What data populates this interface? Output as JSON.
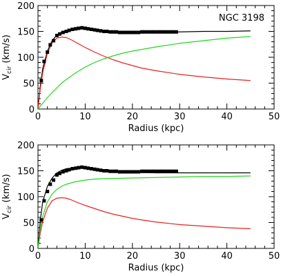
{
  "chart_data": [
    {
      "type": "line",
      "annotation": "NGC 3198",
      "xlabel": "Radius (kpc)",
      "ylabel": "V_cir (km/s)",
      "ylabel_main": "V",
      "ylabel_sub": "cir",
      "ylabel_units": " (km/s)",
      "xlim": [
        0,
        50
      ],
      "ylim": [
        0,
        200
      ],
      "xticks": [
        0,
        10,
        20,
        30,
        40,
        50
      ],
      "yticks": [
        0,
        50,
        100,
        150,
        200
      ],
      "xtick_labels": [
        "0",
        "10",
        "20",
        "30",
        "40",
        "50"
      ],
      "ytick_labels": [
        "0",
        "50",
        "100",
        "150",
        "200"
      ],
      "grid": false,
      "legend": false,
      "series": [
        {
          "kind": "scatter",
          "color": "#000000",
          "x": [
            0.7,
            1.3,
            2.0,
            2.6,
            3.3,
            4.0,
            4.6,
            5.3,
            6.0,
            6.6,
            7.3,
            8.0,
            8.6,
            9.3,
            10.0,
            10.6,
            11.3,
            12.0,
            12.6,
            13.3,
            14.0,
            14.6,
            15.3,
            16.0,
            16.6,
            17.3,
            18.0,
            18.6,
            19.3,
            20.0,
            20.6,
            21.3,
            22.0,
            22.6,
            23.3,
            24.0,
            24.6,
            25.3,
            26.0,
            26.6,
            27.3,
            28.0,
            28.6,
            29.3
          ],
          "y": [
            55,
            92,
            110,
            124,
            132,
            142,
            145,
            148,
            150,
            152,
            154,
            155,
            156,
            157,
            156,
            155,
            154,
            153,
            152,
            151,
            150,
            150,
            149,
            149,
            149,
            148,
            148,
            148,
            148,
            148,
            148,
            148,
            149,
            149,
            149,
            149,
            149,
            149,
            149,
            149,
            149,
            149,
            149,
            149
          ]
        },
        {
          "kind": "line",
          "color": "#000000",
          "x": [
            0,
            0.5,
            1,
            2,
            3,
            4,
            5,
            6,
            7,
            8,
            9,
            10,
            12,
            14,
            16,
            18,
            20,
            22,
            25,
            30,
            35,
            40,
            45
          ],
          "y": [
            0,
            45,
            78,
            112,
            132,
            143,
            149,
            152,
            154,
            155,
            155,
            154,
            152,
            150,
            149,
            148,
            148,
            148,
            149,
            149,
            150,
            150,
            151
          ]
        },
        {
          "kind": "line",
          "color": "#e8201f",
          "x": [
            0,
            0.5,
            1,
            2,
            3,
            4,
            5,
            6,
            7,
            8,
            10,
            12,
            14,
            16,
            18,
            20,
            22,
            25,
            30,
            35,
            40,
            45
          ],
          "y": [
            0,
            40,
            70,
            108,
            128,
            137,
            139,
            138,
            134,
            129,
            119,
            110,
            102,
            95,
            89,
            84,
            79,
            74,
            67,
            62,
            58,
            55
          ]
        },
        {
          "kind": "line",
          "color": "#22d61f",
          "x": [
            0,
            1,
            2,
            3,
            4,
            5,
            6,
            8,
            10,
            12,
            14,
            16,
            18,
            20,
            25,
            30,
            35,
            40,
            45
          ],
          "y": [
            0,
            11,
            22,
            32,
            41,
            50,
            57,
            70,
            81,
            90,
            97,
            103,
            108,
            112,
            120,
            127,
            132,
            137,
            140
          ]
        }
      ]
    },
    {
      "type": "line",
      "xlabel": "Radius (kpc)",
      "ylabel": "V_cir (km/s)",
      "ylabel_main": "V",
      "ylabel_sub": "cir",
      "ylabel_units": " (km/s)",
      "xlim": [
        0,
        50
      ],
      "ylim": [
        0,
        200
      ],
      "xticks": [
        0,
        10,
        20,
        30,
        40,
        50
      ],
      "yticks": [
        0,
        50,
        100,
        150,
        200
      ],
      "xtick_labels": [
        "0",
        "10",
        "20",
        "30",
        "40",
        "50"
      ],
      "ytick_labels": [
        "0",
        "50",
        "100",
        "150",
        "200"
      ],
      "grid": false,
      "legend": false,
      "series": [
        {
          "kind": "scatter",
          "color": "#000000",
          "x": [
            0.7,
            1.3,
            2.0,
            2.6,
            3.3,
            4.0,
            4.6,
            5.3,
            6.0,
            6.6,
            7.3,
            8.0,
            8.6,
            9.3,
            10.0,
            10.6,
            11.3,
            12.0,
            12.6,
            13.3,
            14.0,
            14.6,
            15.3,
            16.0,
            16.6,
            17.3,
            18.0,
            18.6,
            19.3,
            20.0,
            20.6,
            21.3,
            22.0,
            22.6,
            23.3,
            24.0,
            24.6,
            25.3,
            26.0,
            26.6,
            27.3,
            28.0,
            28.6,
            29.3
          ],
          "y": [
            55,
            92,
            110,
            124,
            132,
            142,
            145,
            148,
            150,
            152,
            154,
            155,
            156,
            157,
            156,
            155,
            154,
            153,
            152,
            151,
            150,
            150,
            149,
            149,
            149,
            148,
            148,
            148,
            148,
            148,
            148,
            148,
            149,
            149,
            149,
            149,
            149,
            149,
            149,
            149,
            149,
            149,
            149,
            149
          ]
        },
        {
          "kind": "line",
          "color": "#000000",
          "x": [
            0,
            0.5,
            1,
            2,
            3,
            4,
            5,
            6,
            7,
            8,
            9,
            10,
            12,
            14,
            16,
            18,
            20,
            25,
            30,
            35,
            40,
            45
          ],
          "y": [
            0,
            55,
            90,
            120,
            136,
            146,
            151,
            154,
            155,
            156,
            155,
            154,
            152,
            150,
            149,
            148,
            147,
            146,
            146,
            146,
            146,
            146
          ]
        },
        {
          "kind": "line",
          "color": "#e8201f",
          "x": [
            0,
            0.5,
            1,
            2,
            3,
            4,
            5,
            6,
            7,
            8,
            10,
            12,
            14,
            16,
            18,
            20,
            22,
            25,
            30,
            35,
            40,
            45
          ],
          "y": [
            0,
            30,
            52,
            78,
            92,
            97,
            98,
            97,
            94,
            90,
            83,
            77,
            71,
            66,
            62,
            58,
            55,
            51,
            46,
            43,
            40,
            38
          ]
        },
        {
          "kind": "line",
          "color": "#22d61f",
          "x": [
            0,
            0.5,
            1,
            2,
            3,
            4,
            5,
            6,
            8,
            10,
            12,
            15,
            20,
            25,
            30,
            35,
            40,
            45
          ],
          "y": [
            0,
            40,
            62,
            90,
            105,
            114,
            120,
            124,
            129,
            132,
            134,
            135,
            136,
            137,
            138,
            139,
            139,
            140
          ]
        }
      ]
    }
  ]
}
